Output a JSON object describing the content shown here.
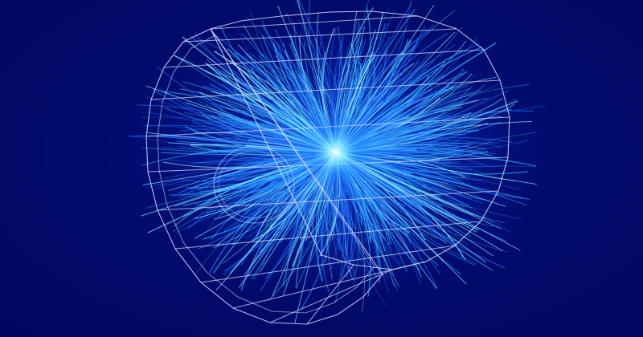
{
  "scene": {
    "description_label": "",
    "colors": {
      "background": "#020a6b",
      "detector_wireframe": "#d9dcff",
      "track_primary": "#1f6bff",
      "track_secondary": "#2aa8ff",
      "track_highlight": "#7fe7ff",
      "core_glow": "#e9ffff"
    },
    "elements": {
      "detector": "detector-barrel-wireframe",
      "tracks": "particle-tracks",
      "vertex": "collision-vertex"
    }
  }
}
